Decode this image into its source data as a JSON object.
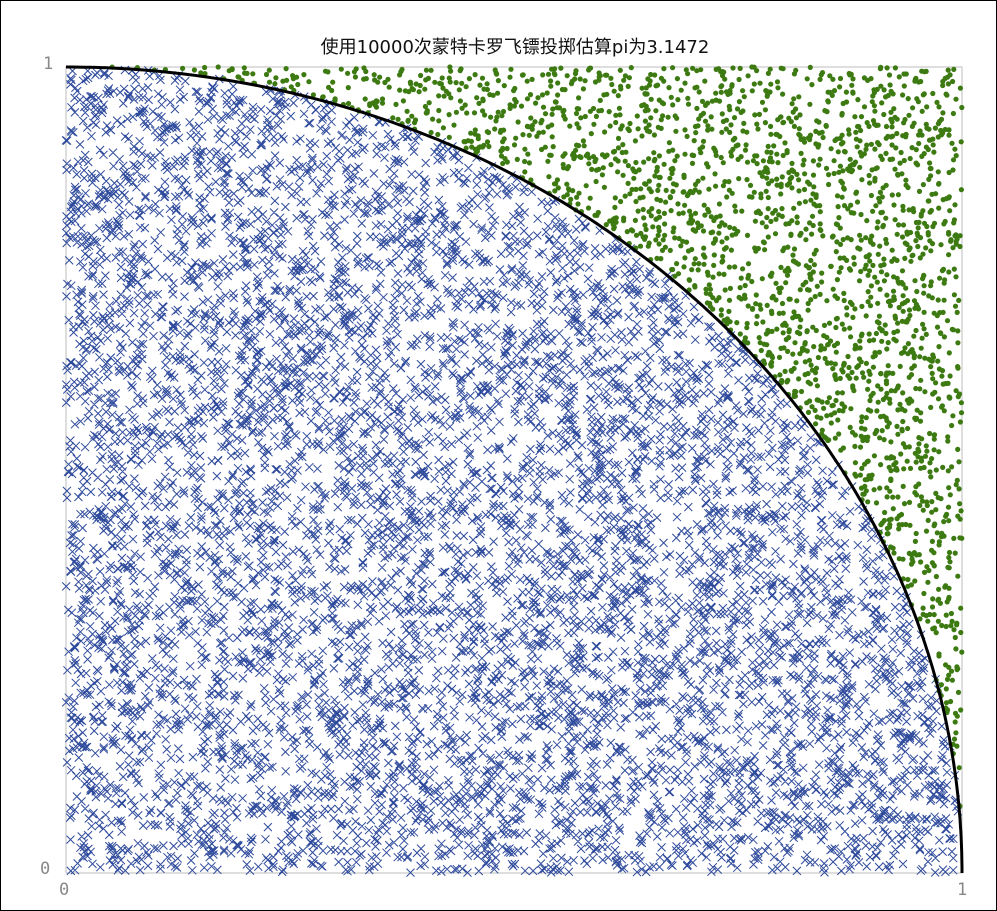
{
  "chart_data": {
    "type": "scatter",
    "title": "使用10000次蒙特卡罗飞镖投掷估算pi为3.1472",
    "xlabel": "",
    "ylabel": "",
    "xlim": [
      0,
      1
    ],
    "ylim": [
      0,
      1
    ],
    "x_tick_labels": [
      "0",
      "1"
    ],
    "y_tick_labels": [
      "0",
      "1"
    ],
    "grid": false,
    "total_points": 10000,
    "pi_estimate": 3.1472,
    "inside_count": 7868,
    "outside_count": 2132,
    "curve": {
      "type": "quarter-circle",
      "center": [
        0,
        0
      ],
      "radius": 1,
      "color": "#000000"
    },
    "series": [
      {
        "marker": "x",
        "color": "#2e4a9c",
        "region": "inside"
      },
      {
        "marker": "dot",
        "color": "#3d7a12",
        "region": "outside"
      }
    ]
  }
}
